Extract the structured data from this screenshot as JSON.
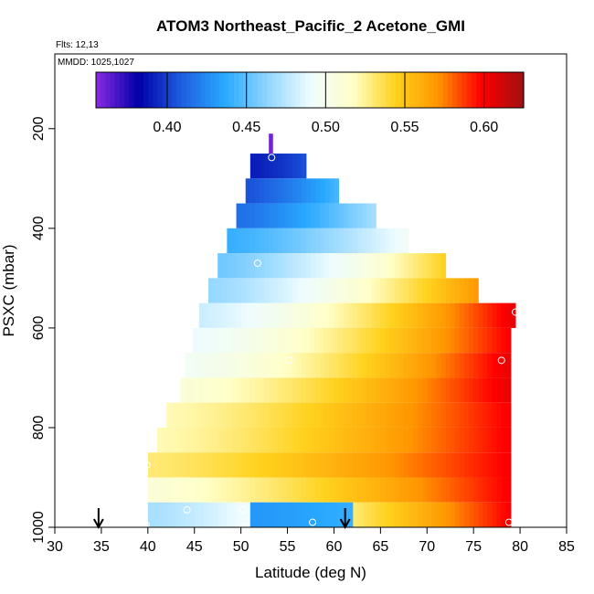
{
  "chart_data": {
    "type": "heatmap",
    "title": "ATOM3 Northeast_Pacific_2 Acetone_GMI",
    "flights_label": "Flts: 12,13",
    "dates_label": "MMDD: 1025,1027",
    "xlabel": "Latitude (deg N)",
    "ylabel": "PSXC (mbar)",
    "xlim": [
      30,
      85
    ],
    "ylim": [
      1000,
      50
    ],
    "y_reversed": true,
    "grid": false,
    "x_ticks": [
      "30",
      "35",
      "40",
      "45",
      "50",
      "55",
      "60",
      "65",
      "70",
      "75",
      "80",
      "85"
    ],
    "y_ticks": [
      "200",
      "400",
      "600",
      "800",
      "1000"
    ],
    "colorbar": {
      "range": [
        0.355,
        0.625
      ],
      "tick_values": [
        0.4,
        0.45,
        0.5,
        0.55,
        0.6
      ],
      "tick_labels": [
        "0.40",
        "0.45",
        "0.50",
        "0.55",
        "0.60"
      ],
      "colors": [
        "#8a2be2",
        "#0000a8",
        "#1e5fe0",
        "#27a8ff",
        "#8fd5ff",
        "#eefcff",
        "#ffffc8",
        "#ffd21e",
        "#ff9500",
        "#ff0000",
        "#a01010"
      ]
    },
    "rows": [
      {
        "p_top": 210,
        "p_bot": 250,
        "lat0": 53.0,
        "lat1": 53.4,
        "v0": 0.36,
        "v1": 0.36
      },
      {
        "p_top": 250,
        "p_bot": 300,
        "lat0": 51.0,
        "lat1": 57.0,
        "v0": 0.39,
        "v1": 0.405
      },
      {
        "p_top": 300,
        "p_bot": 350,
        "lat0": 50.5,
        "lat1": 60.5,
        "v0": 0.405,
        "v1": 0.445
      },
      {
        "p_top": 350,
        "p_bot": 400,
        "lat0": 49.5,
        "lat1": 64.5,
        "v0": 0.415,
        "v1": 0.47
      },
      {
        "p_top": 400,
        "p_bot": 450,
        "lat0": 48.5,
        "lat1": 68.0,
        "v0": 0.44,
        "v1": 0.495
      },
      {
        "p_top": 450,
        "p_bot": 500,
        "lat0": 47.5,
        "lat1": 72.0,
        "v0": 0.455,
        "v1": 0.545
      },
      {
        "p_top": 500,
        "p_bot": 550,
        "lat0": 46.5,
        "lat1": 75.5,
        "v0": 0.465,
        "v1": 0.57
      },
      {
        "p_top": 550,
        "p_bot": 600,
        "lat0": 45.5,
        "lat1": 79.5,
        "v0": 0.48,
        "v1": 0.605
      },
      {
        "p_top": 600,
        "p_bot": 650,
        "lat0": 44.8,
        "lat1": 79.0,
        "v0": 0.49,
        "v1": 0.6
      },
      {
        "p_top": 650,
        "p_bot": 700,
        "lat0": 44.0,
        "lat1": 79.0,
        "v0": 0.495,
        "v1": 0.605
      },
      {
        "p_top": 700,
        "p_bot": 750,
        "lat0": 43.5,
        "lat1": 79.0,
        "v0": 0.51,
        "v1": 0.605
      },
      {
        "p_top": 750,
        "p_bot": 800,
        "lat0": 42.0,
        "lat1": 79.0,
        "v0": 0.52,
        "v1": 0.6
      },
      {
        "p_top": 800,
        "p_bot": 850,
        "lat0": 41.0,
        "lat1": 79.0,
        "v0": 0.52,
        "v1": 0.6
      },
      {
        "p_top": 850,
        "p_bot": 900,
        "lat0": 40.0,
        "lat1": 79.0,
        "v0": 0.53,
        "v1": 0.6
      },
      {
        "p_top": 900,
        "p_bot": 950,
        "lat0": 40.0,
        "lat1": 79.0,
        "v0": 0.51,
        "v1": 0.6
      },
      {
        "p_top": 950,
        "p_bot": 1000,
        "lat0": 40.0,
        "lat1": 79.0,
        "v0": 0.47,
        "v1": 0.6
      },
      {
        "p_top": 950,
        "p_bot": 1000,
        "lat0": 51.0,
        "lat1": 62.0,
        "v0": 0.43,
        "v1": 0.44
      }
    ],
    "points": [
      {
        "lat": 53.3,
        "p": 258
      },
      {
        "lat": 51.8,
        "p": 470
      },
      {
        "lat": 55.2,
        "p": 665
      },
      {
        "lat": 79.5,
        "p": 568
      },
      {
        "lat": 78.0,
        "p": 665
      },
      {
        "lat": 39.9,
        "p": 875
      },
      {
        "lat": 44.2,
        "p": 965
      },
      {
        "lat": 50.2,
        "p": 965
      },
      {
        "lat": 50.6,
        "p": 1000
      },
      {
        "lat": 57.7,
        "p": 990
      },
      {
        "lat": 78.8,
        "p": 990
      },
      {
        "lat": 39.8,
        "p": 995
      }
    ],
    "arrows": [
      {
        "lat": 34.7
      },
      {
        "lat": 61.2
      }
    ]
  }
}
